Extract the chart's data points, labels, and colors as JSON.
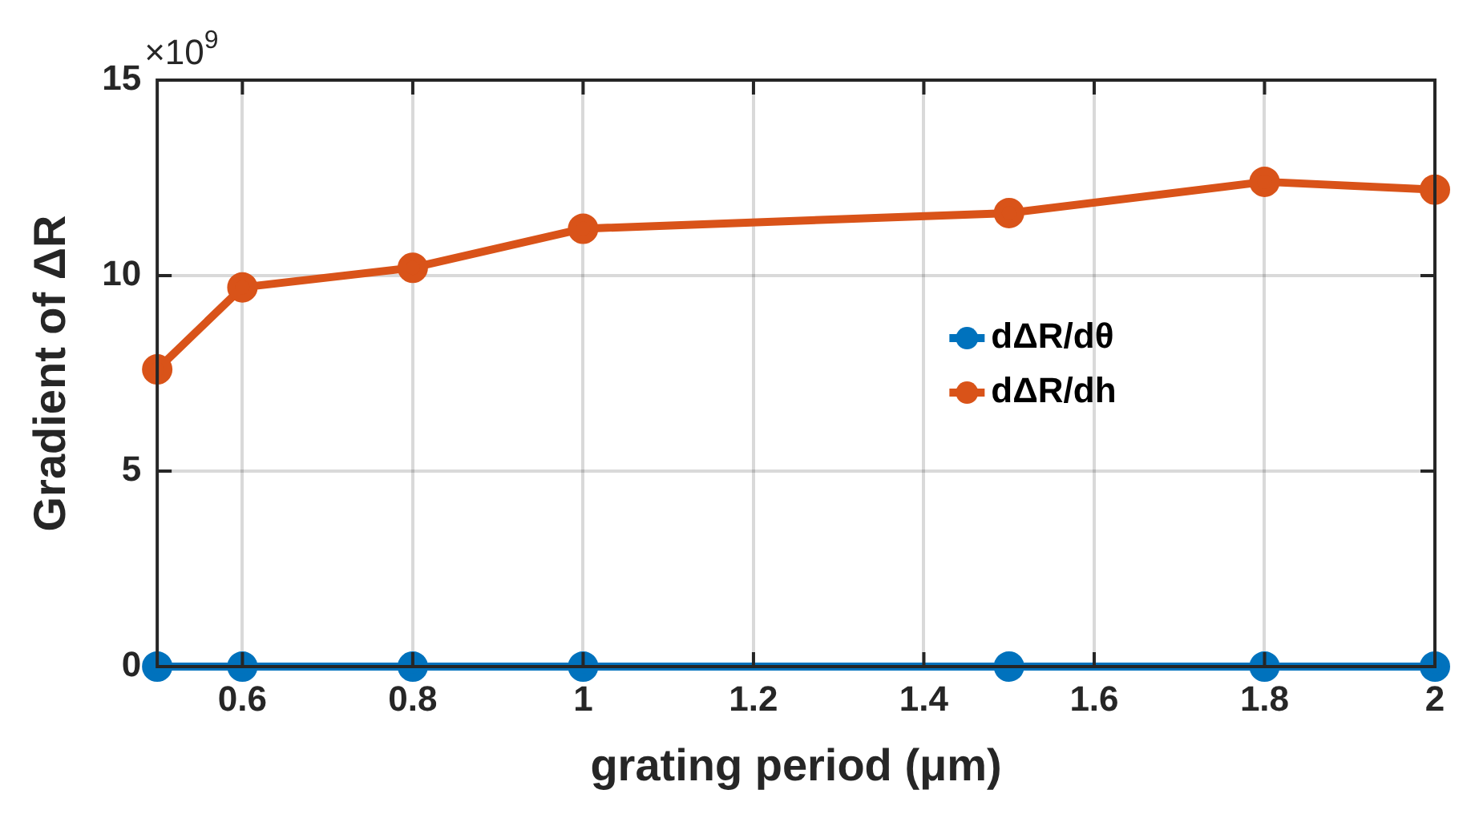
{
  "chart_data": {
    "type": "line",
    "xlabel": "grating period (μm)",
    "ylabel": "Gradient of ΔR",
    "annotations": [
      "×10$^{9}$"
    ],
    "x": [
      0.5,
      0.6,
      0.8,
      1,
      1.5,
      1.8,
      2
    ],
    "series": [
      {
        "name": "dΔR/dθ",
        "color": "#0072bd",
        "values": [
          0,
          0,
          0,
          0,
          0,
          0,
          0
        ]
      },
      {
        "name": "dΔR/dh",
        "color": "#d95319",
        "values": [
          7.6,
          9.7,
          10.2,
          11.2,
          11.6,
          12.4,
          12.2
        ]
      }
    ],
    "xlim": [
      0.5,
      2
    ],
    "xticks": [
      0.6,
      0.8,
      1,
      1.2,
      1.4,
      1.6,
      1.8,
      2
    ],
    "ylim": [
      0,
      15
    ],
    "yticks": [
      0,
      5,
      10,
      15
    ],
    "grid": true,
    "legend": "right",
    "marker": "circle",
    "line_style": "solid"
  }
}
